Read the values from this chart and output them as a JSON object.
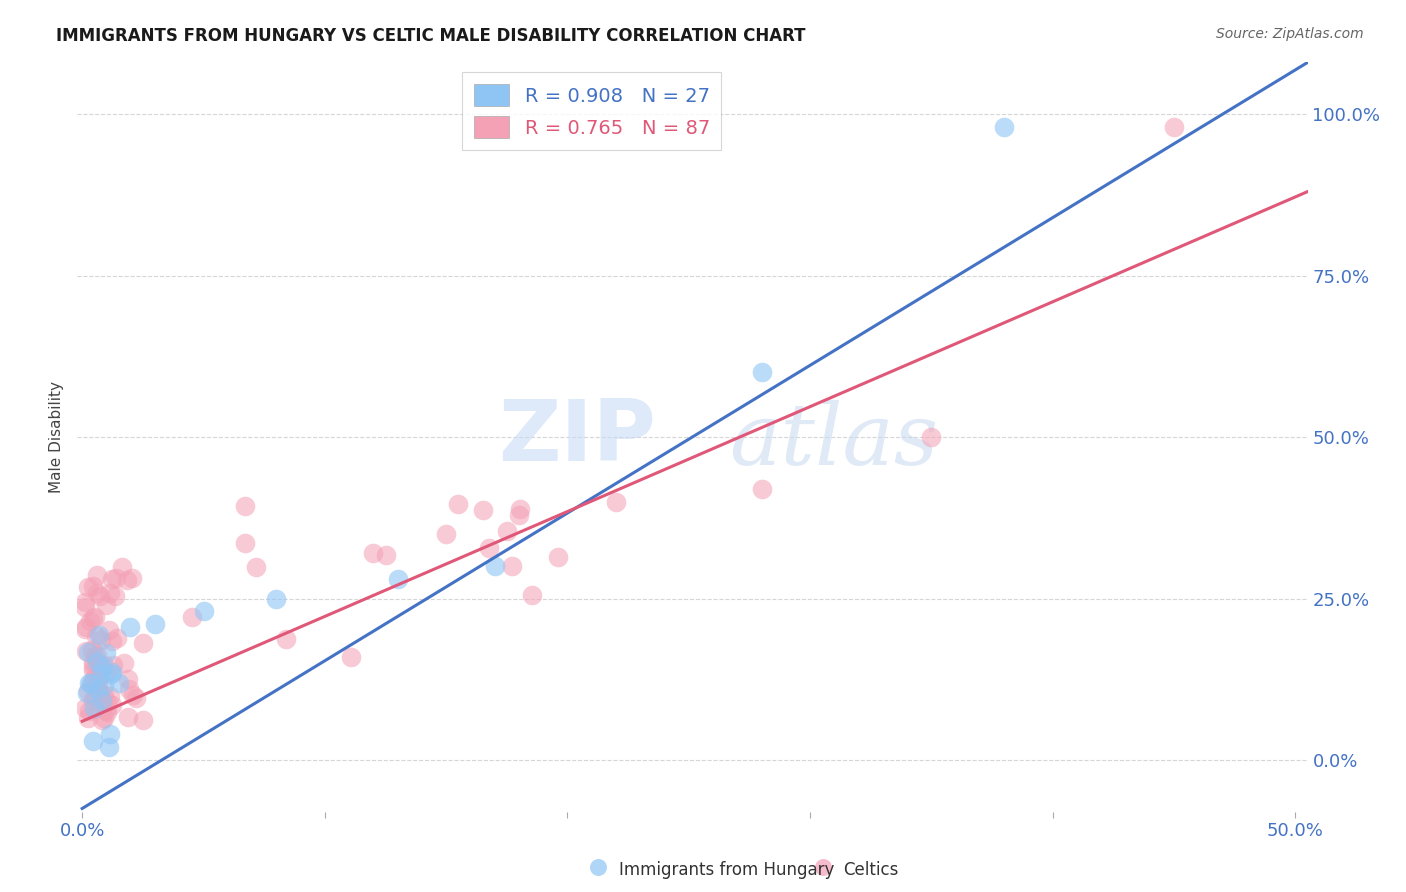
{
  "title": "IMMIGRANTS FROM HUNGARY VS CELTIC MALE DISABILITY CORRELATION CHART",
  "source": "Source: ZipAtlas.com",
  "ylabel": "Male Disability",
  "xlim": [
    -0.002,
    0.505
  ],
  "ylim": [
    -0.08,
    1.08
  ],
  "ytick_values": [
    0.0,
    0.25,
    0.5,
    0.75,
    1.0
  ],
  "xtick_values": [
    0.0,
    0.1,
    0.2,
    0.3,
    0.4,
    0.5
  ],
  "color_hungary": "#8FC5F5",
  "color_celtics": "#F4A0B5",
  "line_color_hungary": "#4472C4",
  "line_color_celtics": "#E05878",
  "R_hungary": 0.908,
  "N_hungary": 27,
  "R_celtics": 0.765,
  "N_celtics": 87,
  "legend_label_hungary": "Immigrants from Hungary",
  "legend_label_celtics": "Celtics",
  "watermark_zip": "ZIP",
  "watermark_atlas": "atlas",
  "background_color": "#FFFFFF",
  "blue_line_x0": 0.0,
  "blue_line_y0": -0.075,
  "blue_line_x1": 0.505,
  "blue_line_y1": 1.08,
  "pink_line_x0": 0.0,
  "pink_line_y0": 0.06,
  "pink_line_x1": 0.505,
  "pink_line_y1": 0.88
}
